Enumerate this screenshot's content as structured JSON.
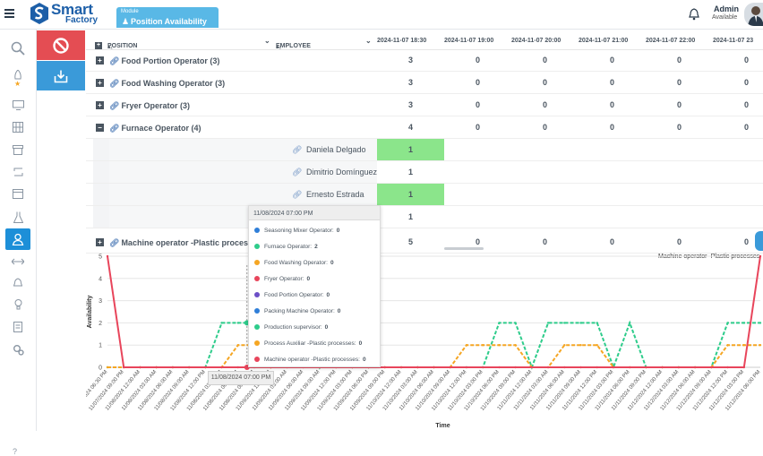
{
  "header": {
    "app_title": "Smart",
    "app_subtitle": "Factory",
    "module_label": "Module",
    "module_title": "Position Availability",
    "user_name": "Admin",
    "user_status": "Available"
  },
  "sidebar": {
    "icons": [
      "search-icon",
      "rocket-icon",
      "monitor-icon",
      "building-icon",
      "archive-icon",
      "cycle-icon",
      "calendar-icon",
      "flask-icon",
      "person-icon",
      "arrows-icon",
      "bell-icon",
      "bulb-icon",
      "document-icon",
      "gears-icon",
      "help-icon"
    ],
    "help_label": "?"
  },
  "grid": {
    "columns": {
      "position": "POSITION",
      "position_sort": "▴₁",
      "employee": "EMPLOYEE",
      "employee_sort": "▴₂",
      "dates": [
        "2024-11-07 18:30",
        "2024-11-07 19:00",
        "2024-11-07 20:00",
        "2024-11-07 21:00",
        "2024-11-07 22:00",
        "2024-11-07 23"
      ]
    },
    "groups": [
      {
        "label": "Food Portion Operator (3)",
        "expander": "+",
        "values": [
          "3",
          "0",
          "0",
          "0",
          "0",
          "0"
        ]
      },
      {
        "label": "Food Washing Operator (3)",
        "expander": "+",
        "values": [
          "3",
          "0",
          "0",
          "0",
          "0",
          "0"
        ]
      },
      {
        "label": "Fryer Operator (3)",
        "expander": "+",
        "values": [
          "3",
          "0",
          "0",
          "0",
          "0",
          "0"
        ]
      },
      {
        "label": "Furnace Operator (4)",
        "expander": "−",
        "values": [
          "4",
          "0",
          "0",
          "0",
          "0",
          "0"
        ]
      }
    ],
    "employees": [
      {
        "name": "Daniela Delgado",
        "value": "1"
      },
      {
        "name": "Dimitrio Domínguez",
        "value": "1"
      },
      {
        "name": "Ernesto Estrada",
        "value": "1"
      },
      {
        "name": "",
        "value": "1"
      }
    ],
    "last_group": {
      "label": "Machine operator -Plastic processes",
      "expander": "+",
      "values": [
        "5",
        "0",
        "0",
        "0",
        "0",
        "0"
      ]
    }
  },
  "tooltip": {
    "title": "11/08/2024 07:00 PM",
    "items": [
      {
        "label": "Seasoning Mixer Operator:",
        "value": "0",
        "color": "#2f7ed8"
      },
      {
        "label": "Furnace Operator:",
        "value": "2",
        "color": "#2ecc8b"
      },
      {
        "label": "Food Washing Operator:",
        "value": "0",
        "color": "#f5a623"
      },
      {
        "label": "Fryer Operator:",
        "value": "0",
        "color": "#e8455b"
      },
      {
        "label": "Food Portion Operator:",
        "value": "0",
        "color": "#6c4fc7"
      },
      {
        "label": "Packing Machine Operator:",
        "value": "0",
        "color": "#2f7ed8"
      },
      {
        "label": "Production supervisor:",
        "value": "0",
        "color": "#2ecc8b"
      },
      {
        "label": "Process Auxiliar -Plastic processes:",
        "value": "0",
        "color": "#f5a623"
      },
      {
        "label": "Machine operator -Plastic processes:",
        "value": "0",
        "color": "#e8455b"
      }
    ]
  },
  "x_tooltip": "11/08/2024 07:00 PM",
  "chart_data": {
    "type": "line",
    "title": "",
    "xlabel": "Time",
    "ylabel": "Availability",
    "ylim": [
      0,
      5
    ],
    "yticks": [
      "0",
      "1",
      "2",
      "3",
      "4",
      "5"
    ],
    "legend_visible_entry": "Machine operator -Plastic processes",
    "categories": [
      "11/07/2024 06:30 PM",
      "11/07/2024 09:00 PM",
      "11/08/2024 12:00 AM",
      "11/08/2024 03:00 AM",
      "11/08/2024 06:00 AM",
      "11/08/2024 09:00 AM",
      "11/08/2024 12:00 PM",
      "11/08/2024 03:00 PM",
      "11/08/2024 06:00 PM",
      "11/08/2024 09:00 PM",
      "11/09/2024 12:00 AM",
      "11/09/2024 03:00 AM",
      "11/09/2024 06:00 AM",
      "11/09/2024 09:00 AM",
      "11/09/2024 12:00 PM",
      "11/09/2024 03:00 PM",
      "11/09/2024 06:00 PM",
      "11/09/2024 09:00 PM",
      "11/10/2024 12:00 AM",
      "11/10/2024 03:00 AM",
      "11/10/2024 06:00 AM",
      "11/10/2024 09:00 AM",
      "11/10/2024 12:00 PM",
      "11/10/2024 03:00 PM",
      "11/10/2024 06:00 PM",
      "11/10/2024 09:00 PM",
      "11/11/2024 12:00 AM",
      "11/11/2024 03:00 AM",
      "11/11/2024 06:00 AM",
      "11/11/2024 09:00 AM",
      "11/11/2024 12:00 PM",
      "11/11/2024 03:00 PM",
      "11/11/2024 06:00 PM",
      "11/11/2024 09:00 PM",
      "11/12/2024 12:00 AM",
      "11/12/2024 03:00 AM",
      "11/12/2024 06:00 AM",
      "11/12/2024 09:00 AM",
      "11/12/2024 12:00 PM",
      "11/12/2024 03:00 PM",
      "11/12/2024 06:00 PM"
    ],
    "series": [
      {
        "name": "Furnace Operator",
        "color": "#2ecc8b",
        "dashed": true,
        "values": [
          0,
          0,
          0,
          0,
          0,
          0,
          0,
          2,
          2,
          2,
          0,
          2,
          2,
          0,
          2,
          0,
          0,
          0,
          0,
          0,
          0,
          0,
          0,
          0,
          2,
          2,
          0,
          2,
          2,
          2,
          2,
          0,
          2,
          0,
          0,
          0,
          0,
          0,
          2,
          2,
          2
        ]
      },
      {
        "name": "Process Auxiliar -Plastic processes",
        "color": "#f5a623",
        "dashed": true,
        "values": [
          0,
          0,
          0,
          0,
          0,
          0,
          0,
          0,
          1,
          1,
          0,
          1,
          1,
          0,
          0,
          0,
          0,
          0,
          0,
          0,
          0,
          0,
          1,
          1,
          1,
          1,
          0,
          0,
          1,
          1,
          1,
          0,
          0,
          0,
          0,
          0,
          0,
          0,
          1,
          1,
          1
        ]
      },
      {
        "name": "Machine operator -Plastic processes",
        "color": "#e8455b",
        "dashed": false,
        "values": [
          5,
          0,
          0,
          0,
          0,
          0,
          0,
          0,
          0,
          0,
          0,
          0,
          0,
          0,
          0,
          0,
          0,
          0,
          0,
          0,
          0,
          0,
          0,
          0,
          0,
          0,
          0,
          0,
          0,
          0,
          0,
          0,
          0,
          0,
          0,
          0,
          0,
          0,
          0,
          0,
          5
        ]
      }
    ]
  }
}
